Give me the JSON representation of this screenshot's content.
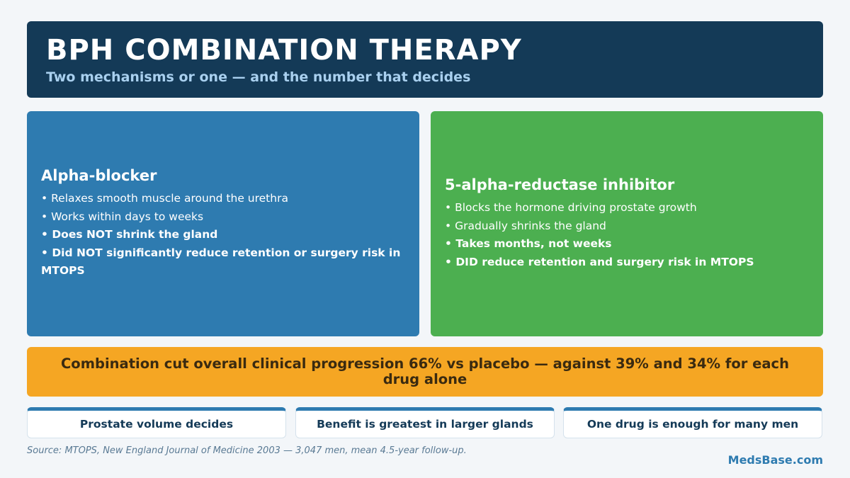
{
  "header": {
    "title": "BPH COMBINATION THERAPY",
    "subtitle": "Two mechanisms or one — and the number that decides"
  },
  "cards": [
    {
      "title": "Alpha-blocker",
      "items": [
        {
          "text": "Relaxes smooth muscle around the urethra",
          "bold": false
        },
        {
          "text": "Works within days to weeks",
          "bold": false
        },
        {
          "text": "Does NOT shrink the gland",
          "bold": true
        },
        {
          "text": "Did NOT significantly reduce retention or surgery risk in MTOPS",
          "bold": true
        }
      ]
    },
    {
      "title": "5-alpha-reductase inhibitor",
      "items": [
        {
          "text": "Blocks the hormone driving prostate growth",
          "bold": false
        },
        {
          "text": "Gradually shrinks the gland",
          "bold": false
        },
        {
          "text": "Takes months, not weeks",
          "bold": true
        },
        {
          "text": "DID reduce retention and surgery risk in MTOPS",
          "bold": true
        }
      ]
    }
  ],
  "banner": "Combination cut overall clinical progression 66% vs placebo — against 39% and 34% for each drug alone",
  "pills": [
    "Prostate volume decides",
    "Benefit is greatest in larger glands",
    "One drug is enough for many men"
  ],
  "source": "Source: MTOPS, New England Journal of Medicine 2003 — 3,047 men, mean 4.5-year follow-up.",
  "brand": "MedsBase.com"
}
